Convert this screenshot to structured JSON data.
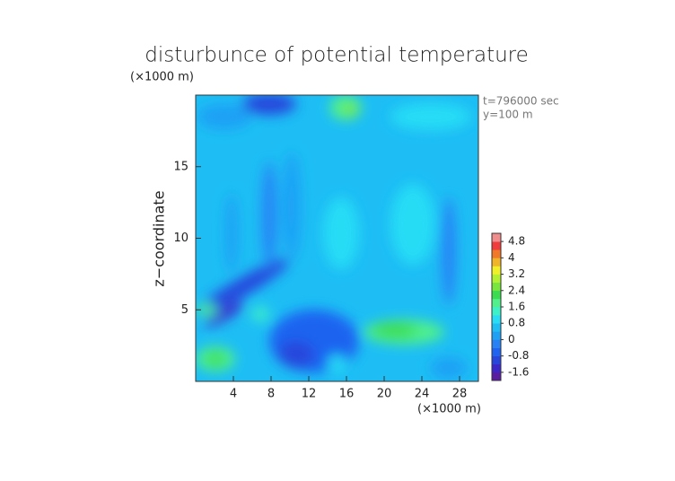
{
  "chart_data": {
    "type": "contour",
    "title": "disturbunce of potential temperature",
    "y_unit_label": "(×1000 m)",
    "x_unit_label": "(×1000 m)",
    "ylabel": "z−coordinate",
    "annotations": [
      "t=796000 sec",
      "y=100 m"
    ],
    "xlim": [
      0,
      30
    ],
    "xticks": [
      4,
      8,
      12,
      16,
      20,
      24,
      28
    ],
    "ylim": [
      0,
      20
    ],
    "yticks": [
      5,
      10,
      15
    ],
    "colorbar": {
      "lim": [
        -2,
        5.2
      ],
      "ticks": [
        4.8,
        4,
        3.2,
        2.4,
        1.6,
        0.8,
        0,
        -0.8,
        -1.6
      ],
      "colors": [
        "#5a1ea0",
        "#3c28c8",
        "#2846dc",
        "#1e64f0",
        "#2882f5",
        "#1ea0f5",
        "#1ebef5",
        "#28dcf5",
        "#3cf0c8",
        "#50f08c",
        "#3cdc50",
        "#78e63c",
        "#b4f032",
        "#f0f028",
        "#f0b428",
        "#f07828",
        "#f03c3c",
        "#f08c8c"
      ]
    }
  }
}
